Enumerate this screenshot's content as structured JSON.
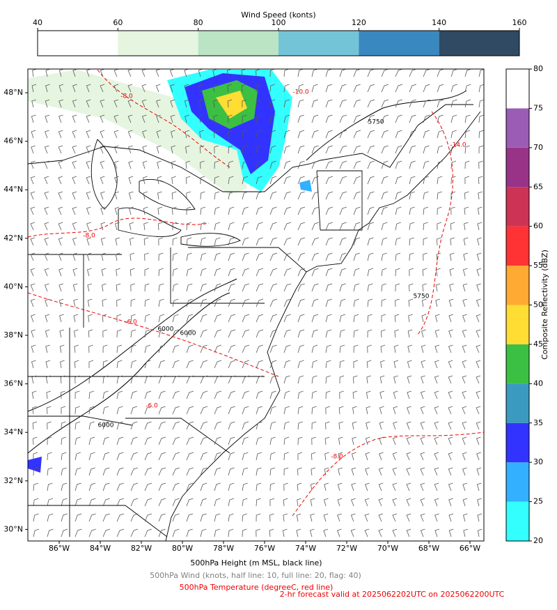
{
  "wind_colorbar": {
    "title": "Wind Speed (konts)",
    "ticks": [
      40,
      60,
      80,
      100,
      120,
      140,
      160
    ],
    "colors": [
      "#ffffff",
      "#e5f5e0",
      "#bae4c4",
      "#74c4d8",
      "#3a88c0",
      "#2f4a62"
    ]
  },
  "reflectivity_colorbar": {
    "label": "Composite Reflectivity (dBZ)",
    "ticks": [
      20,
      25,
      30,
      35,
      40,
      45,
      50,
      55,
      60,
      65,
      70,
      75,
      80
    ],
    "colors": [
      "#33ffff",
      "#33b0ff",
      "#3333ff",
      "#3a9abf",
      "#3cc043",
      "#ffdd33",
      "#ffaa33",
      "#ff3333",
      "#cc3355",
      "#993388",
      "#9a5cb4",
      "#ffffff"
    ]
  },
  "map": {
    "xtick_labels": [
      "86°W",
      "84°W",
      "82°W",
      "80°W",
      "78°W",
      "76°W",
      "74°W",
      "72°W",
      "70°W",
      "68°W",
      "66°W"
    ],
    "ytick_labels": [
      "48°N",
      "46°N",
      "44°N",
      "42°N",
      "40°N",
      "38°N",
      "36°N",
      "34°N",
      "32°N",
      "30°N"
    ],
    "contour_labels": [
      "5750",
      "5750",
      "6000",
      "6000",
      "6000",
      "-8.0",
      "-8.0",
      "-6.0",
      "-6.0",
      "-14.0",
      "-10.0",
      "-8.0"
    ]
  },
  "captions": {
    "height": "500hPa Height (m MSL, black line)",
    "wind": "500hPa Wind (knots, half line: 10, full line: 20, flag: 40)",
    "temperature": "500hPa Temperature (degreeC, red line)",
    "forecast": "2-hr forecast valid at 2025062202UTC on 2025062200UTC"
  }
}
